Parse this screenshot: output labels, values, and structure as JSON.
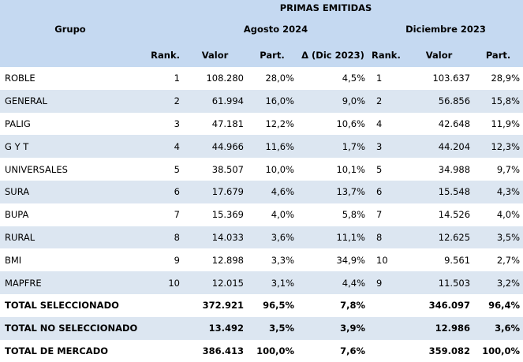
{
  "header": {
    "super_title": "PRIMAS EMITIDAS",
    "grupo": "Grupo",
    "period_current": "Agosto 2024",
    "period_previous": "Diciembre 2023",
    "rank": "Rank.",
    "valor": "Valor",
    "part": "Part.",
    "delta": "Δ (Dic 2023)",
    "rank2": "Rank.",
    "valor2": "Valor",
    "part2": "Part."
  },
  "rows": [
    {
      "grupo": "ROBLE",
      "rank": "1",
      "valor": "108.280",
      "part": "28,0%",
      "delta": "4,5%",
      "rank_prev": "1",
      "valor_prev": "103.637",
      "part_prev": "28,9%"
    },
    {
      "grupo": "GENERAL",
      "rank": "2",
      "valor": "61.994",
      "part": "16,0%",
      "delta": "9,0%",
      "rank_prev": "2",
      "valor_prev": "56.856",
      "part_prev": "15,8%"
    },
    {
      "grupo": "PALIG",
      "rank": "3",
      "valor": "47.181",
      "part": "12,2%",
      "delta": "10,6%",
      "rank_prev": "4",
      "valor_prev": "42.648",
      "part_prev": "11,9%"
    },
    {
      "grupo": "G Y T",
      "rank": "4",
      "valor": "44.966",
      "part": "11,6%",
      "delta": "1,7%",
      "rank_prev": "3",
      "valor_prev": "44.204",
      "part_prev": "12,3%"
    },
    {
      "grupo": "UNIVERSALES",
      "rank": "5",
      "valor": "38.507",
      "part": "10,0%",
      "delta": "10,1%",
      "rank_prev": "5",
      "valor_prev": "34.988",
      "part_prev": "9,7%"
    },
    {
      "grupo": "SURA",
      "rank": "6",
      "valor": "17.679",
      "part": "4,6%",
      "delta": "13,7%",
      "rank_prev": "6",
      "valor_prev": "15.548",
      "part_prev": "4,3%"
    },
    {
      "grupo": "BUPA",
      "rank": "7",
      "valor": "15.369",
      "part": "4,0%",
      "delta": "5,8%",
      "rank_prev": "7",
      "valor_prev": "14.526",
      "part_prev": "4,0%"
    },
    {
      "grupo": "RURAL",
      "rank": "8",
      "valor": "14.033",
      "part": "3,6%",
      "delta": "11,1%",
      "rank_prev": "8",
      "valor_prev": "12.625",
      "part_prev": "3,5%"
    },
    {
      "grupo": "BMI",
      "rank": "9",
      "valor": "12.898",
      "part": "3,3%",
      "delta": "34,9%",
      "rank_prev": "10",
      "valor_prev": "9.561",
      "part_prev": "2,7%"
    },
    {
      "grupo": "MAPFRE",
      "rank": "10",
      "valor": "12.015",
      "part": "3,1%",
      "delta": "4,4%",
      "rank_prev": "9",
      "valor_prev": "11.503",
      "part_prev": "3,2%"
    }
  ],
  "totals": [
    {
      "grupo": "TOTAL SELECCIONADO",
      "valor": "372.921",
      "part": "96,5%",
      "delta": "7,8%",
      "valor_prev": "346.097",
      "part_prev": "96,4%"
    },
    {
      "grupo": "TOTAL NO SELECCIONADO",
      "valor": "13.492",
      "part": "3,5%",
      "delta": "3,9%",
      "valor_prev": "12.986",
      "part_prev": "3,6%"
    },
    {
      "grupo": "TOTAL DE MERCADO",
      "valor": "386.413",
      "part": "100,0%",
      "delta": "7,6%",
      "valor_prev": "359.082",
      "part_prev": "100,0%"
    }
  ]
}
